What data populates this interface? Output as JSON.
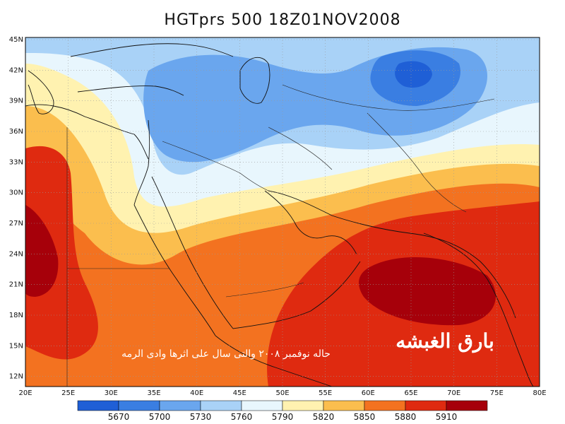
{
  "title": "HGTprs 500 18Z01NOV2008",
  "lat_labels": [
    "45N",
    "42N",
    "39N",
    "36N",
    "33N",
    "30N",
    "27N",
    "24N",
    "21N",
    "18N",
    "15N",
    "12N"
  ],
  "lon_labels": [
    "20E",
    "25E",
    "30E",
    "35E",
    "40E",
    "45E",
    "50E",
    "55E",
    "60E",
    "65E",
    "70E",
    "75E",
    "80E"
  ],
  "colorbar": {
    "labels": [
      "5670",
      "5700",
      "5730",
      "5760",
      "5790",
      "5820",
      "5850",
      "5880",
      "5910"
    ],
    "colors": [
      "#1f5fd6",
      "#3a7ee2",
      "#6aa6ee",
      "#a9d2f7",
      "#e8f6fd",
      "#fff2b0",
      "#fbbe4e",
      "#f37220",
      "#df2a10",
      "#a6000a"
    ]
  },
  "annotations": {
    "signature": "بارق الغبشه",
    "caption": "حاله نوفمبر ٢٠٠٨ والتى سال على اثرها وادى الرمه"
  }
}
